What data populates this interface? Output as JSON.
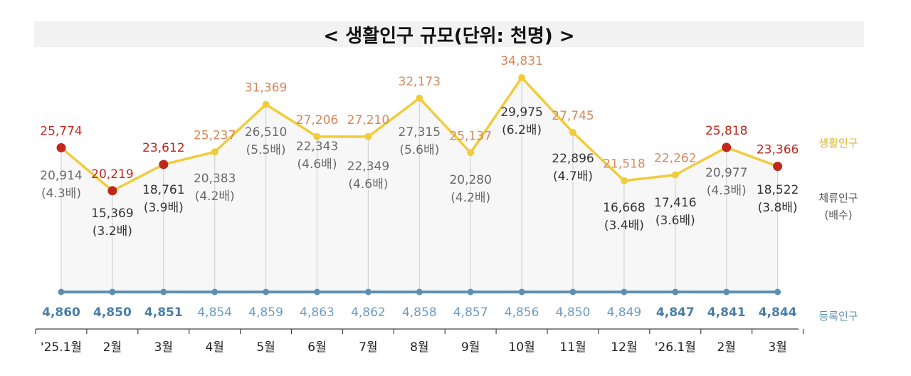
{
  "chart_data": {
    "type": "line",
    "title": "< 생활인구 규모(단위: 천명) >",
    "categories": [
      "'25.1월",
      "2월",
      "3월",
      "4월",
      "5월",
      "6월",
      "7월",
      "8월",
      "9월",
      "10월",
      "11월",
      "12월",
      "'26.1월",
      "2월",
      "3월"
    ],
    "series": [
      {
        "name": "생활인구",
        "color": "#f0cc3c",
        "values": [
          25774,
          20219,
          23612,
          25237,
          31369,
          27206,
          27210,
          32173,
          25137,
          34831,
          27745,
          21518,
          22262,
          25818,
          23366
        ],
        "labels": [
          "25,774",
          "20,219",
          "23,612",
          "25,237",
          "31,369",
          "27,206",
          "27,210",
          "32,173",
          "25,137",
          "34,831",
          "27,745",
          "21,518",
          "22,262",
          "25,818",
          "23,366"
        ],
        "highlight": [
          true,
          true,
          true,
          false,
          false,
          false,
          false,
          false,
          false,
          false,
          false,
          false,
          false,
          true,
          true
        ]
      },
      {
        "name": "체류인구",
        "name_note": "(배수)",
        "values": [
          20914,
          15369,
          18761,
          20383,
          26510,
          22343,
          22349,
          27315,
          20280,
          29975,
          22896,
          16668,
          17416,
          20977,
          18522
        ],
        "labels": [
          "20,914",
          "15,369",
          "18,761",
          "20,383",
          "26,510",
          "22,343",
          "22,349",
          "27,315",
          "20,280",
          "29,975",
          "22,896",
          "16,668",
          "17,416",
          "20,977",
          "18,522"
        ],
        "ratios": [
          "(4.3배)",
          "(3.2배)",
          "(3.9배)",
          "(4.2배)",
          "(5.5배)",
          "(4.6배)",
          "(4.6배)",
          "(5.6배)",
          "(4.2배)",
          "(6.2배)",
          "(4.7배)",
          "(3.4배)",
          "(3.6배)",
          "(4.3배)",
          "(3.8배)"
        ],
        "highlight": [
          false,
          true,
          true,
          false,
          false,
          false,
          false,
          false,
          false,
          true,
          true,
          true,
          true,
          false,
          true
        ]
      },
      {
        "name": "등록인구",
        "color": "#5b8fb5",
        "values": [
          4860,
          4850,
          4851,
          4854,
          4859,
          4863,
          4862,
          4858,
          4857,
          4856,
          4850,
          4849,
          4847,
          4841,
          4844
        ],
        "labels": [
          "4,860",
          "4,850",
          "4,851",
          "4,854",
          "4,859",
          "4,863",
          "4,862",
          "4,858",
          "4,857",
          "4,856",
          "4,850",
          "4,849",
          "4,847",
          "4,841",
          "4,844"
        ],
        "highlight": [
          true,
          true,
          true,
          false,
          false,
          false,
          false,
          false,
          false,
          false,
          false,
          false,
          true,
          true,
          true
        ]
      }
    ],
    "colors": {
      "highlight_red": "#c0281c",
      "label_orange": "#d8875a",
      "dark_text": "#333333",
      "muted_text": "#6a6a6a",
      "title_band": "#f2f2f2"
    }
  }
}
